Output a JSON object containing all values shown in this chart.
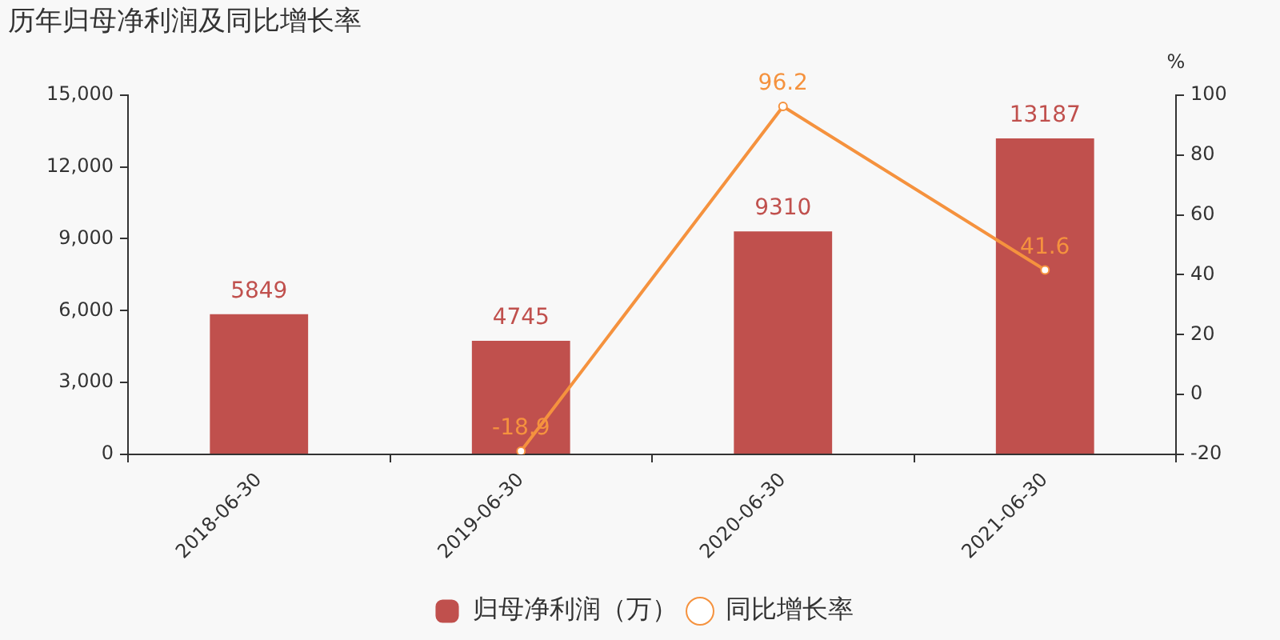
{
  "chart_data": {
    "type": "bar",
    "title": "历年归母净利润及同比增长率",
    "categories": [
      "2018-06-30",
      "2019-06-30",
      "2020-06-30",
      "2021-06-30"
    ],
    "series": [
      {
        "name": "归母净利润（万）",
        "color": "#c0504d",
        "values": [
          5849,
          4745,
          9310,
          13187
        ]
      },
      {
        "name": "同比增长率",
        "type": "line",
        "axis": "y2",
        "color": "#f5923e",
        "values": [
          null,
          -18.9,
          96.2,
          41.6
        ]
      }
    ],
    "ylim": [
      0,
      15000
    ],
    "yticks": [
      0,
      {
        "value": 3000,
        "label": "3,000"
      },
      {
        "value": 6000,
        "label": "6,000"
      },
      {
        "value": 9000,
        "label": "9,000"
      },
      {
        "value": 12000,
        "label": "12,000"
      },
      {
        "value": 15000,
        "label": "15,000"
      }
    ],
    "y2lim": [
      -20,
      100
    ],
    "y2ticks": [
      -20,
      0,
      20,
      40,
      60,
      80,
      100
    ],
    "y2label": "%",
    "grid": false,
    "legend": "bottom",
    "marker": "circle",
    "data_labels": true
  }
}
